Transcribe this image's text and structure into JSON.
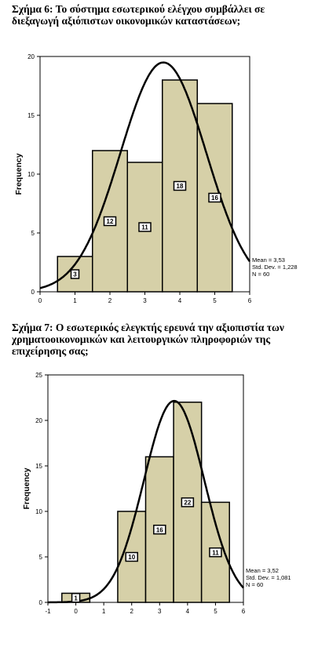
{
  "figures": [
    {
      "title_lines": [
        "Σχήμα 6: Το σύστημα εσωτερικού ελέγχου συμβάλλει σε",
        "διεξαγωγή αξιόπιστων οικονομικών καταστάσεων;"
      ]
    },
    {
      "title_lines": [
        "Σχήμα 7: Ο εσωτερικός ελεγκτής ερευνά την αξιοπιστία των",
        "χρηματοοικονομικών και λειτουργικών πληροφοριών της",
        "επιχείρησης σας;"
      ]
    }
  ],
  "chart_data": [
    {
      "type": "bar",
      "subtype": "histogram",
      "categories": [
        "1",
        "2",
        "3",
        "4",
        "5"
      ],
      "values": [
        3,
        12,
        11,
        18,
        16
      ],
      "xlabel": "",
      "ylabel": "Frequency",
      "xlim": [
        0,
        6
      ],
      "ylim": [
        0,
        20
      ],
      "xticks": [
        "0",
        "1",
        "2",
        "3",
        "4",
        "5",
        "6"
      ],
      "yticks": [
        "0",
        "5",
        "10",
        "15",
        "20"
      ],
      "normal_curve": {
        "mean": 3.53,
        "sd": 1.228,
        "n": 60
      },
      "stats_legend": [
        "Mean = 3,53",
        "Std. Dev. = 1,228",
        "N = 60"
      ],
      "bar_color": "#d6d0a8",
      "grid": false
    },
    {
      "type": "bar",
      "subtype": "histogram",
      "categories": [
        "0",
        "1",
        "2",
        "3",
        "4",
        "5"
      ],
      "values": [
        1,
        0,
        10,
        16,
        22,
        11
      ],
      "xlabel": "",
      "ylabel": "Frequency",
      "xlim": [
        -1,
        6
      ],
      "ylim": [
        0,
        25
      ],
      "xticks": [
        "-1",
        "0",
        "1",
        "2",
        "3",
        "4",
        "5",
        "6"
      ],
      "yticks": [
        "0",
        "5",
        "10",
        "15",
        "20",
        "25"
      ],
      "normal_curve": {
        "mean": 3.52,
        "sd": 1.081,
        "n": 60
      },
      "stats_legend": [
        "Mean = 3,52",
        "Std. Dev. = 1,081",
        "N = 60"
      ],
      "bar_color": "#d6d0a8",
      "grid": false
    }
  ]
}
